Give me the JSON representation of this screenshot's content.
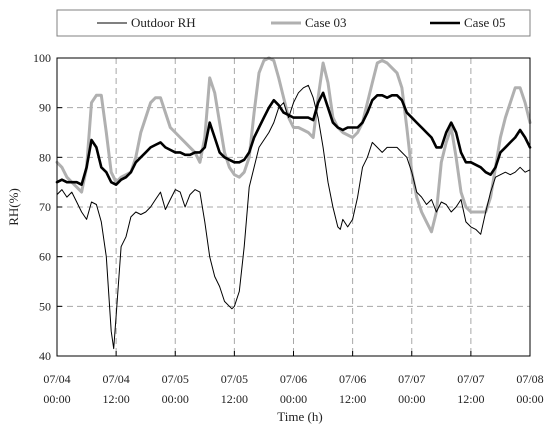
{
  "chart_data": {
    "type": "line",
    "xlabel": "Time (h)",
    "ylabel": "RH(%)",
    "xlim": [
      0,
      96
    ],
    "ylim": [
      40,
      100
    ],
    "yticks": [
      40,
      50,
      60,
      70,
      80,
      90,
      100
    ],
    "xticks": [
      {
        "x": 0,
        "date": "07/04",
        "time": "00:00"
      },
      {
        "x": 12,
        "date": "07/04",
        "time": "12:00"
      },
      {
        "x": 24,
        "date": "07/05",
        "time": "00:00"
      },
      {
        "x": 36,
        "date": "07/05",
        "time": "12:00"
      },
      {
        "x": 48,
        "date": "07/06",
        "time": "00:00"
      },
      {
        "x": 60,
        "date": "07/06",
        "time": "12:00"
      },
      {
        "x": 72,
        "date": "07/07",
        "time": "00:00"
      },
      {
        "x": 84,
        "date": "07/07",
        "time": "12:00"
      },
      {
        "x": 96,
        "date": "07/08",
        "time": "00:00"
      }
    ],
    "grid": true,
    "legend_position": "top",
    "series": [
      {
        "name": "Outdoor RH",
        "color": "#000000",
        "width": 1,
        "points": [
          [
            0,
            72.5
          ],
          [
            1,
            73.5
          ],
          [
            2,
            72
          ],
          [
            3,
            73
          ],
          [
            4,
            71
          ],
          [
            5,
            69
          ],
          [
            6,
            67.5
          ],
          [
            7,
            71
          ],
          [
            8,
            70.5
          ],
          [
            9,
            67
          ],
          [
            10,
            60
          ],
          [
            11,
            45
          ],
          [
            11.5,
            41.5
          ],
          [
            12,
            48
          ],
          [
            13,
            62
          ],
          [
            14,
            64
          ],
          [
            15,
            68
          ],
          [
            16,
            69
          ],
          [
            17,
            68.5
          ],
          [
            18,
            69
          ],
          [
            19,
            70
          ],
          [
            20,
            71.5
          ],
          [
            21,
            73
          ],
          [
            22,
            69.5
          ],
          [
            23,
            71.5
          ],
          [
            24,
            73.5
          ],
          [
            25,
            73
          ],
          [
            26,
            70
          ],
          [
            27,
            72.5
          ],
          [
            28,
            73.5
          ],
          [
            29,
            73
          ],
          [
            30,
            67
          ],
          [
            31,
            60
          ],
          [
            32,
            56
          ],
          [
            33,
            54
          ],
          [
            34,
            51
          ],
          [
            35,
            50
          ],
          [
            35.5,
            49.5
          ],
          [
            36,
            50
          ],
          [
            37,
            53
          ],
          [
            38,
            62
          ],
          [
            39,
            74
          ],
          [
            40,
            78
          ],
          [
            41,
            82
          ],
          [
            42,
            83.5
          ],
          [
            43,
            85
          ],
          [
            44,
            87
          ],
          [
            45,
            90
          ],
          [
            46,
            91
          ],
          [
            47,
            88
          ],
          [
            48,
            91
          ],
          [
            49,
            93
          ],
          [
            50,
            94
          ],
          [
            51,
            94.5
          ],
          [
            52,
            92
          ],
          [
            53,
            88
          ],
          [
            54,
            82
          ],
          [
            55,
            75
          ],
          [
            56,
            70
          ],
          [
            57,
            66
          ],
          [
            57.5,
            65.5
          ],
          [
            58,
            67.5
          ],
          [
            59,
            66
          ],
          [
            60,
            67.5
          ],
          [
            61,
            72
          ],
          [
            62,
            78
          ],
          [
            63,
            80
          ],
          [
            64,
            83
          ],
          [
            65,
            82
          ],
          [
            66,
            81
          ],
          [
            67,
            82
          ],
          [
            68,
            82
          ],
          [
            69,
            82
          ],
          [
            70,
            81
          ],
          [
            71,
            80
          ],
          [
            72,
            77
          ],
          [
            73,
            73
          ],
          [
            74,
            72
          ],
          [
            75,
            70.5
          ],
          [
            76,
            71.5
          ],
          [
            77,
            69
          ],
          [
            78,
            71
          ],
          [
            79,
            70.5
          ],
          [
            80,
            69
          ],
          [
            81,
            70
          ],
          [
            82,
            71.5
          ],
          [
            83,
            67
          ],
          [
            84,
            66
          ],
          [
            85,
            65.5
          ],
          [
            86,
            64.5
          ],
          [
            87,
            69
          ],
          [
            88,
            73
          ],
          [
            89,
            76
          ],
          [
            90,
            76.5
          ],
          [
            91,
            77
          ],
          [
            92,
            76.5
          ],
          [
            93,
            77
          ],
          [
            94,
            78
          ],
          [
            95,
            77
          ],
          [
            96,
            77.5
          ]
        ]
      },
      {
        "name": "Case 03",
        "color": "#b0b0b0",
        "width": 3,
        "points": [
          [
            0,
            79
          ],
          [
            1,
            78
          ],
          [
            2,
            76
          ],
          [
            3,
            75
          ],
          [
            4,
            74
          ],
          [
            5,
            73
          ],
          [
            6,
            78
          ],
          [
            7,
            91
          ],
          [
            8,
            92.5
          ],
          [
            9,
            92.5
          ],
          [
            10,
            85
          ],
          [
            11,
            77
          ],
          [
            12,
            75
          ],
          [
            13,
            76
          ],
          [
            14,
            76.5
          ],
          [
            15,
            77
          ],
          [
            16,
            80
          ],
          [
            17,
            85
          ],
          [
            18,
            88
          ],
          [
            19,
            91
          ],
          [
            20,
            92
          ],
          [
            21,
            92
          ],
          [
            22,
            89
          ],
          [
            23,
            86
          ],
          [
            24,
            85
          ],
          [
            25,
            84
          ],
          [
            26,
            83
          ],
          [
            27,
            82
          ],
          [
            28,
            81
          ],
          [
            29,
            79
          ],
          [
            30,
            84
          ],
          [
            31,
            96
          ],
          [
            32,
            93
          ],
          [
            33,
            87
          ],
          [
            34,
            81
          ],
          [
            35,
            78
          ],
          [
            36,
            76.5
          ],
          [
            37,
            76
          ],
          [
            38,
            77
          ],
          [
            39,
            80
          ],
          [
            40,
            89
          ],
          [
            41,
            97
          ],
          [
            42,
            99.5
          ],
          [
            43,
            100
          ],
          [
            44,
            99.5
          ],
          [
            45,
            96
          ],
          [
            46,
            92
          ],
          [
            47,
            88
          ],
          [
            48,
            86
          ],
          [
            49,
            86
          ],
          [
            50,
            85.5
          ],
          [
            51,
            85
          ],
          [
            52,
            84
          ],
          [
            53,
            92
          ],
          [
            54,
            99
          ],
          [
            55,
            95
          ],
          [
            56,
            88
          ],
          [
            57,
            86
          ],
          [
            58,
            85
          ],
          [
            59,
            84.5
          ],
          [
            60,
            84
          ],
          [
            61,
            85
          ],
          [
            62,
            87
          ],
          [
            63,
            91
          ],
          [
            64,
            95
          ],
          [
            65,
            99
          ],
          [
            66,
            99.5
          ],
          [
            67,
            99
          ],
          [
            68,
            98
          ],
          [
            69,
            97
          ],
          [
            70,
            94
          ],
          [
            71,
            86
          ],
          [
            72,
            77
          ],
          [
            73,
            72
          ],
          [
            74,
            69
          ],
          [
            75,
            67
          ],
          [
            76,
            65
          ],
          [
            77,
            69
          ],
          [
            78,
            79
          ],
          [
            79,
            83
          ],
          [
            80,
            86
          ],
          [
            81,
            80
          ],
          [
            82,
            73
          ],
          [
            83,
            70
          ],
          [
            84,
            69
          ],
          [
            85,
            69
          ],
          [
            86,
            69
          ],
          [
            87,
            69
          ],
          [
            88,
            72
          ],
          [
            89,
            78
          ],
          [
            90,
            84
          ],
          [
            91,
            88
          ],
          [
            92,
            91
          ],
          [
            93,
            94
          ],
          [
            94,
            94
          ],
          [
            95,
            91
          ],
          [
            96,
            87
          ]
        ]
      },
      {
        "name": "Case 05",
        "color": "#000000",
        "width": 2.6,
        "points": [
          [
            0,
            75
          ],
          [
            1,
            75.5
          ],
          [
            2,
            75
          ],
          [
            3,
            75
          ],
          [
            4,
            75
          ],
          [
            5,
            74.5
          ],
          [
            6,
            78
          ],
          [
            7,
            83.5
          ],
          [
            8,
            82
          ],
          [
            9,
            78
          ],
          [
            10,
            77
          ],
          [
            11,
            75
          ],
          [
            12,
            74.5
          ],
          [
            13,
            75.5
          ],
          [
            14,
            76
          ],
          [
            15,
            77
          ],
          [
            16,
            79
          ],
          [
            17,
            80
          ],
          [
            18,
            81
          ],
          [
            19,
            82
          ],
          [
            20,
            82.5
          ],
          [
            21,
            83
          ],
          [
            22,
            82
          ],
          [
            23,
            81.5
          ],
          [
            24,
            81
          ],
          [
            25,
            81
          ],
          [
            26,
            80.5
          ],
          [
            27,
            80.5
          ],
          [
            28,
            81
          ],
          [
            29,
            81
          ],
          [
            30,
            82
          ],
          [
            31,
            87
          ],
          [
            32,
            84
          ],
          [
            33,
            81
          ],
          [
            34,
            80
          ],
          [
            35,
            79.5
          ],
          [
            36,
            79
          ],
          [
            37,
            79
          ],
          [
            38,
            79.5
          ],
          [
            39,
            81
          ],
          [
            40,
            84
          ],
          [
            41,
            86
          ],
          [
            42,
            88
          ],
          [
            43,
            90
          ],
          [
            44,
            91.5
          ],
          [
            45,
            90.5
          ],
          [
            46,
            89
          ],
          [
            47,
            88.5
          ],
          [
            48,
            88
          ],
          [
            49,
            88
          ],
          [
            50,
            88
          ],
          [
            51,
            88
          ],
          [
            52,
            87.5
          ],
          [
            53,
            91
          ],
          [
            54,
            93
          ],
          [
            55,
            90
          ],
          [
            56,
            87
          ],
          [
            57,
            86
          ],
          [
            58,
            85.5
          ],
          [
            59,
            86
          ],
          [
            60,
            86
          ],
          [
            61,
            86
          ],
          [
            62,
            87
          ],
          [
            63,
            89
          ],
          [
            64,
            91.5
          ],
          [
            65,
            92.5
          ],
          [
            66,
            92.5
          ],
          [
            67,
            92
          ],
          [
            68,
            92.5
          ],
          [
            69,
            92.5
          ],
          [
            70,
            91.5
          ],
          [
            71,
            89
          ],
          [
            72,
            88
          ],
          [
            73,
            87
          ],
          [
            74,
            86
          ],
          [
            75,
            85
          ],
          [
            76,
            84
          ],
          [
            77,
            82
          ],
          [
            78,
            82
          ],
          [
            79,
            85
          ],
          [
            80,
            87
          ],
          [
            81,
            85
          ],
          [
            82,
            81
          ],
          [
            83,
            79
          ],
          [
            84,
            79
          ],
          [
            85,
            78.5
          ],
          [
            86,
            78
          ],
          [
            87,
            77
          ],
          [
            88,
            76.5
          ],
          [
            89,
            78
          ],
          [
            90,
            81
          ],
          [
            91,
            82
          ],
          [
            92,
            83
          ],
          [
            93,
            84
          ],
          [
            94,
            85.5
          ],
          [
            95,
            84
          ],
          [
            96,
            82
          ]
        ]
      }
    ]
  }
}
